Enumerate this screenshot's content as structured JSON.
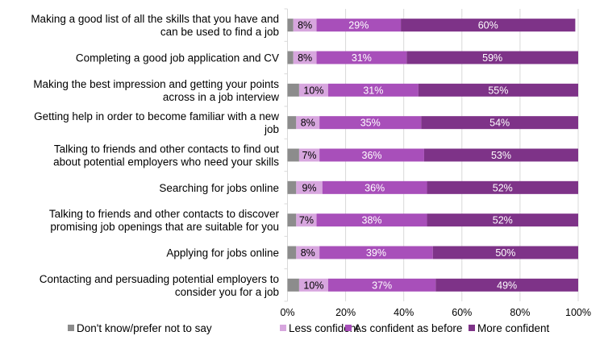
{
  "chart_data": {
    "type": "bar",
    "orientation": "horizontal",
    "stacked": true,
    "categories": [
      [
        "Making a good list of all the skills that you have and",
        "can be used to find a job"
      ],
      [
        "Completing a good job application and CV"
      ],
      [
        "Making the best impression and getting your points",
        "across in a job interview"
      ],
      [
        "Getting help in order to become familiar with a new",
        "job"
      ],
      [
        "Talking to friends and other contacts to find out",
        "about potential employers who need your skills"
      ],
      [
        "Searching for jobs online"
      ],
      [
        "Talking to friends and other contacts to discover",
        "promising job openings that are suitable for you"
      ],
      [
        "Applying for jobs online"
      ],
      [
        "Contacting and persuading potential employers to",
        "consider you for a job"
      ]
    ],
    "series": [
      {
        "name": "Don't know/prefer not to say",
        "color": "#8c8c8c",
        "label_color": "#000000",
        "show_labels": false,
        "values": [
          2,
          2,
          4,
          3,
          4,
          3,
          3,
          3,
          4
        ]
      },
      {
        "name": "Less confident",
        "color": "#d7a6de",
        "label_color": "#000000",
        "show_labels": true,
        "values": [
          8,
          8,
          10,
          8,
          7,
          9,
          7,
          8,
          10
        ]
      },
      {
        "name": "As confident as before",
        "color": "#a84fba",
        "label_color": "#ffffff",
        "show_labels": true,
        "values": [
          29,
          31,
          31,
          35,
          36,
          36,
          38,
          39,
          37
        ]
      },
      {
        "name": "More confident",
        "color": "#7e3388",
        "label_color": "#ffffff",
        "show_labels": true,
        "values": [
          60,
          59,
          55,
          54,
          53,
          52,
          52,
          50,
          49
        ]
      }
    ],
    "xlim": [
      0,
      100
    ],
    "xticks": [
      "0%",
      "20%",
      "40%",
      "60%",
      "80%",
      "100%"
    ],
    "grid": true,
    "legend": "bottom",
    "title": "",
    "xlabel": "",
    "ylabel": ""
  }
}
